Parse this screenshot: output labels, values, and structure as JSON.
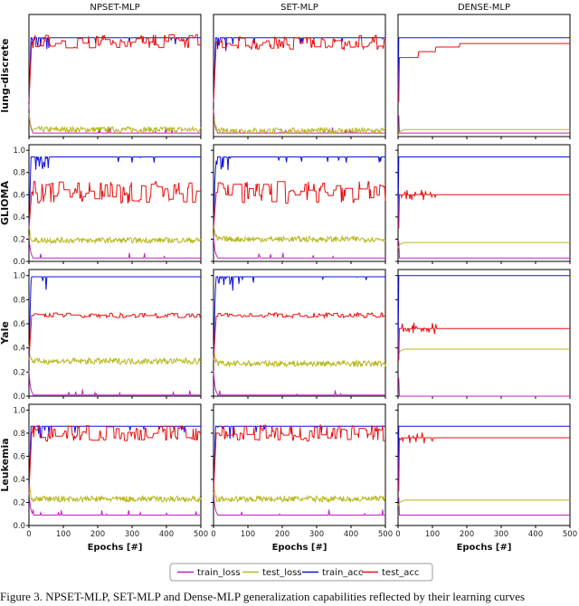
{
  "figure": {
    "caption": "Figure 3. NPSET-MLP, SET-MLP and Dense-MLP generalization capabilities reflected by their learning curves"
  },
  "colors": {
    "train_loss": "#c020c0",
    "test_loss": "#b8b820",
    "train_acc": "#1010e0",
    "test_acc": "#e81010"
  },
  "chart_data": {
    "type": "line",
    "columns": [
      "NPSET-MLP",
      "SET-MLP",
      "DENSE-MLP"
    ],
    "rows": [
      "lung-discrete",
      "GLIOMA",
      "Yale",
      "Leukemia"
    ],
    "xlabel": "Epochs [#]",
    "xlim": [
      0,
      500
    ],
    "ylim": [
      0,
      1.05
    ],
    "x_ticks": [
      "0",
      "100",
      "200",
      "300",
      "400",
      "500"
    ],
    "y_ticks": [
      "0.0",
      "0.2",
      "0.4",
      "0.6",
      "0.8",
      "1.0"
    ],
    "legend": {
      "position": "bottom-center",
      "entries": [
        "train_loss",
        "test_loss",
        "train_acc",
        "test_acc"
      ]
    },
    "panels": [
      {
        "row": "lung-discrete",
        "column": "NPSET-MLP",
        "train_acc": 0.85,
        "test_acc": 0.82,
        "test_acc_noise": 0.06,
        "test_loss": 0.06,
        "train_loss": 0.03
      },
      {
        "row": "lung-discrete",
        "column": "SET-MLP",
        "train_acc": 0.85,
        "test_acc": 0.81,
        "test_acc_noise": 0.06,
        "test_loss": 0.05,
        "train_loss": 0.03
      },
      {
        "row": "lung-discrete",
        "column": "DENSE-MLP",
        "train_acc": 0.85,
        "test_acc": [
          0.68,
          0.73,
          0.77,
          0.8
        ],
        "test_loss": 0.06,
        "train_loss": 0.03
      },
      {
        "row": "GLIOMA",
        "column": "NPSET-MLP",
        "train_acc": 0.94,
        "test_acc": 0.62,
        "test_acc_noise": 0.1,
        "test_loss": 0.19,
        "train_loss": 0.03
      },
      {
        "row": "GLIOMA",
        "column": "SET-MLP",
        "train_acc": 0.94,
        "test_acc": 0.62,
        "test_acc_noise": 0.1,
        "test_loss": 0.2,
        "train_loss": 0.03
      },
      {
        "row": "GLIOMA",
        "column": "DENSE-MLP",
        "train_acc": 0.94,
        "test_acc": 0.6,
        "test_loss": 0.17,
        "train_loss": 0.03
      },
      {
        "row": "Yale",
        "column": "NPSET-MLP",
        "train_acc": 0.99,
        "test_acc": 0.67,
        "test_acc_noise": 0.02,
        "test_loss": 0.29,
        "train_loss": 0.01
      },
      {
        "row": "Yale",
        "column": "SET-MLP",
        "train_acc": 0.99,
        "test_acc": 0.67,
        "test_acc_noise": 0.02,
        "test_loss": 0.27,
        "train_loss": 0.01
      },
      {
        "row": "Yale",
        "column": "DENSE-MLP",
        "train_acc": 1.0,
        "test_acc": 0.56,
        "test_loss": 0.39,
        "train_loss": 0.0
      },
      {
        "row": "Leukemia",
        "column": "NPSET-MLP",
        "train_acc": 0.86,
        "test_acc": 0.8,
        "test_acc_noise": 0.07,
        "test_loss": 0.23,
        "train_loss": 0.09
      },
      {
        "row": "Leukemia",
        "column": "SET-MLP",
        "train_acc": 0.86,
        "test_acc": 0.8,
        "test_acc_noise": 0.07,
        "test_loss": 0.23,
        "train_loss": 0.09
      },
      {
        "row": "Leukemia",
        "column": "DENSE-MLP",
        "train_acc": 0.86,
        "test_acc": 0.76,
        "test_loss": 0.22,
        "train_loss": 0.09
      }
    ]
  }
}
